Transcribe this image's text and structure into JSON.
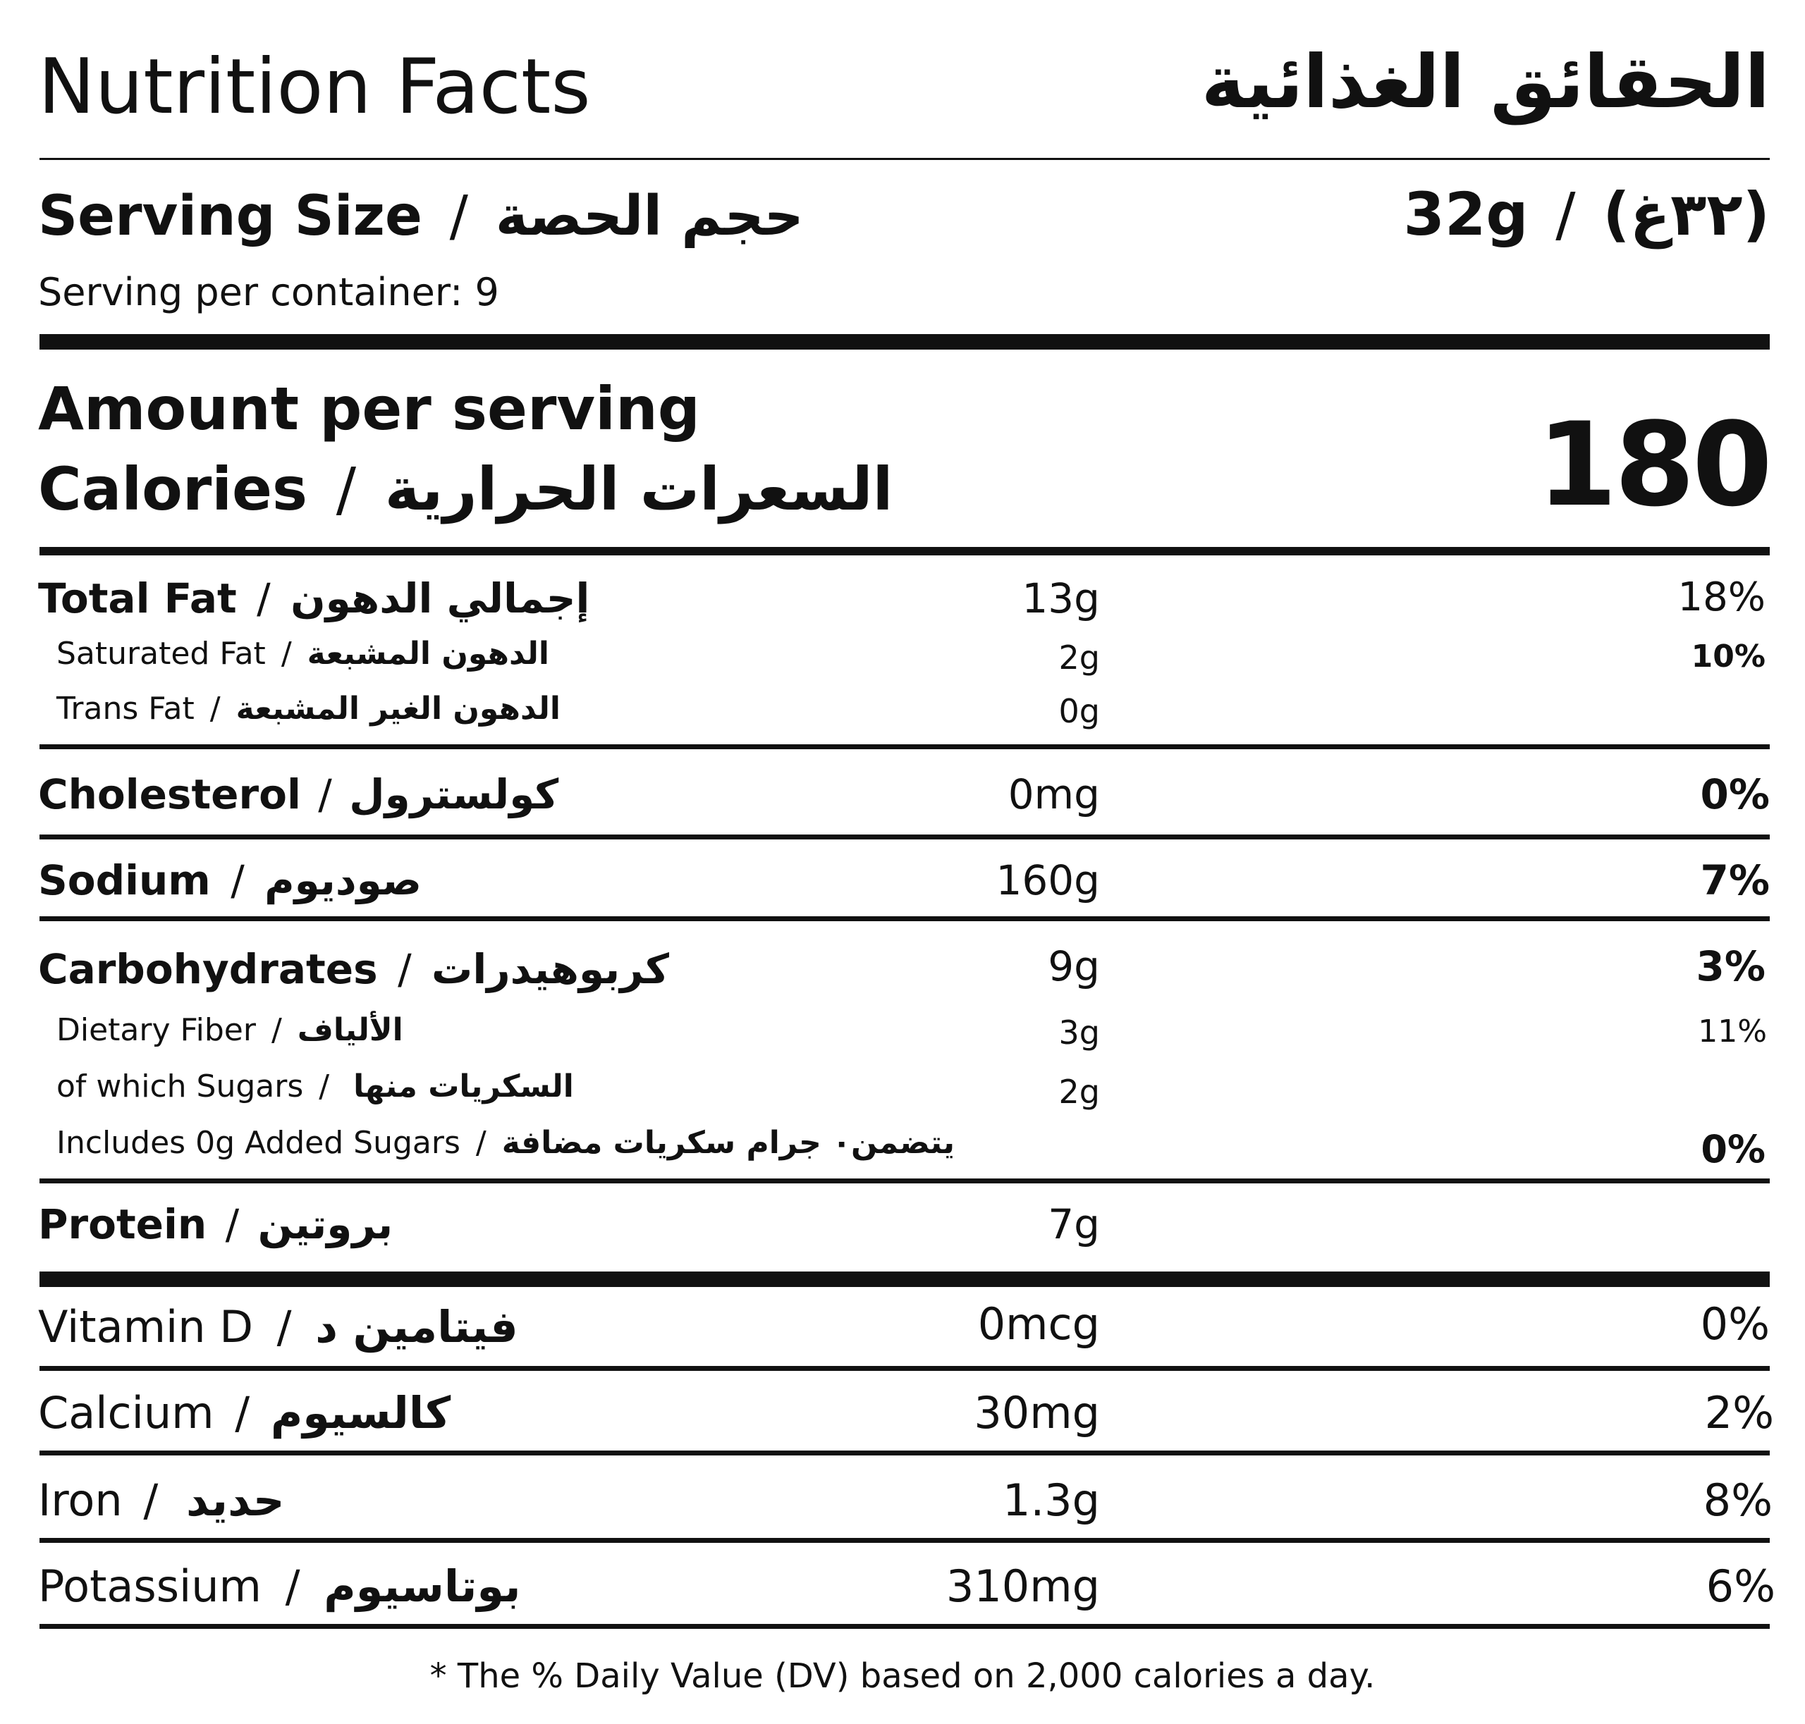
{
  "header": {
    "title_en": "Nutrition Facts",
    "title_ar": "الحقائق الغذائية"
  },
  "serving": {
    "label_en": "Serving Size",
    "separator": "/",
    "label_ar": "حجم الحصة",
    "value_en": "32g",
    "value_ar": "(٣٢غ)",
    "per_container": "Serving per container: 9"
  },
  "amount": {
    "heading": "Amount per serving",
    "calories_en": "Calories",
    "calories_ar": "السعرات الحرارية",
    "calories_value": "180"
  },
  "nutrients": {
    "total_fat": {
      "en": "Total Fat",
      "ar": "إجمالي الدهون",
      "amount": "13g",
      "dv": "18%"
    },
    "saturated_fat": {
      "en": "Saturated Fat",
      "ar": "الدهون المشبعة",
      "amount": "2g",
      "dv": "10%"
    },
    "trans_fat": {
      "en": "Trans Fat",
      "ar": "الدهون الغير المشبعة",
      "amount": "0g"
    },
    "cholesterol": {
      "en": "Cholesterol",
      "ar": "كولسترول",
      "amount": "0mg",
      "dv": "0%"
    },
    "sodium": {
      "en": "Sodium",
      "ar": "صوديوم",
      "amount": "160g",
      "dv": "7%"
    },
    "carbohydrates": {
      "en": "Carbohydrates",
      "ar": "كربوهيدرات",
      "amount": "9g",
      "dv": "3%"
    },
    "dietary_fiber": {
      "en": "Dietary Fiber",
      "ar": "الألياف",
      "amount": "3g",
      "dv": "11%"
    },
    "sugars": {
      "en": "of which Sugars",
      "ar": "السكريات منها",
      "amount": "2g"
    },
    "added_sugars": {
      "en": "Includes 0g Added Sugars",
      "ar": "يتضمن٠ جرام سكريات مضافة",
      "dv": "0%"
    },
    "protein": {
      "en": "Protein",
      "ar": "بروتين",
      "amount": "7g"
    }
  },
  "vitamins": {
    "vitamin_d": {
      "en": "Vitamin D",
      "ar": "فيتامين د",
      "amount": "0mcg",
      "dv": "0%"
    },
    "calcium": {
      "en": "Calcium",
      "ar": "كالسيوم",
      "amount": "30mg",
      "dv": "2%"
    },
    "iron": {
      "en": "Iron",
      "ar": "حديد",
      "amount": "1.3g",
      "dv": "8%"
    },
    "potassium": {
      "en": "Potassium",
      "ar": "بوتاسيوم",
      "amount": "310mg",
      "dv": "6%"
    }
  },
  "footnote": "* The % Daily Value (DV) based on 2,000 calories a day."
}
